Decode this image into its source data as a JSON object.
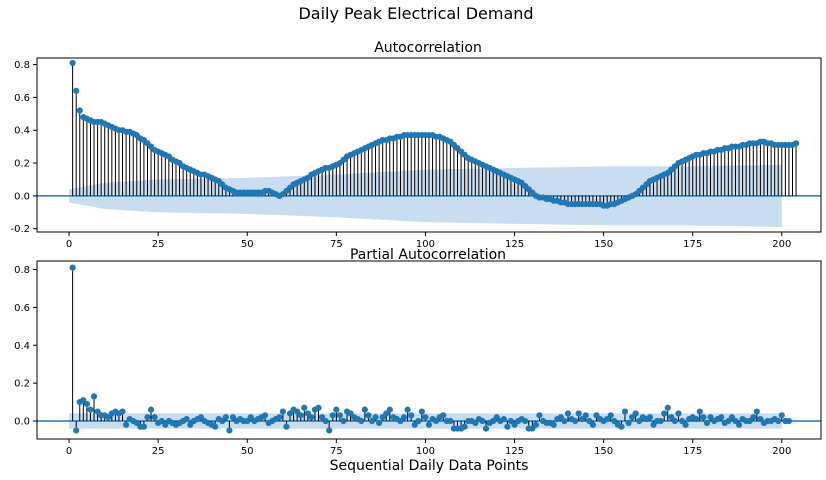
{
  "figure": {
    "suptitle": "Daily Peak Electrical Demand",
    "xlabel": "Sequential Daily Data Points"
  },
  "colors": {
    "marker": "#1f77b4",
    "stem": "#000000",
    "baseline": "#1f77b4",
    "confidence_band": "#c6dbef"
  },
  "chart_data": [
    {
      "type": "stem",
      "title": "Autocorrelation",
      "xlabel": "",
      "ylabel": "",
      "xlim": [
        -9,
        211
      ],
      "ylim": [
        -0.22,
        0.84
      ],
      "xticks": [
        0,
        25,
        50,
        75,
        100,
        125,
        150,
        175,
        200
      ],
      "yticks": [
        -0.2,
        0.0,
        0.2,
        0.4,
        0.6,
        0.8
      ],
      "ytick_labels": [
        "-0.2",
        "0.0",
        "0.2",
        "0.4",
        "0.6",
        "0.8"
      ],
      "lags": [
        1,
        200
      ],
      "values": [
        0.81,
        0.64,
        0.52,
        0.48,
        0.47,
        0.46,
        0.45,
        0.45,
        0.45,
        0.44,
        0.43,
        0.42,
        0.41,
        0.4,
        0.4,
        0.39,
        0.39,
        0.38,
        0.37,
        0.35,
        0.34,
        0.32,
        0.3,
        0.28,
        0.27,
        0.26,
        0.25,
        0.24,
        0.22,
        0.21,
        0.2,
        0.18,
        0.17,
        0.16,
        0.15,
        0.14,
        0.13,
        0.13,
        0.12,
        0.11,
        0.1,
        0.09,
        0.07,
        0.05,
        0.04,
        0.03,
        0.02,
        0.02,
        0.02,
        0.02,
        0.02,
        0.02,
        0.02,
        0.02,
        0.03,
        0.03,
        0.02,
        0.01,
        0.0,
        0.01,
        0.03,
        0.05,
        0.07,
        0.08,
        0.09,
        0.1,
        0.11,
        0.13,
        0.14,
        0.15,
        0.16,
        0.17,
        0.17,
        0.18,
        0.19,
        0.2,
        0.22,
        0.24,
        0.25,
        0.26,
        0.27,
        0.28,
        0.29,
        0.3,
        0.31,
        0.32,
        0.33,
        0.34,
        0.34,
        0.35,
        0.35,
        0.36,
        0.36,
        0.37,
        0.37,
        0.37,
        0.37,
        0.37,
        0.37,
        0.37,
        0.37,
        0.37,
        0.36,
        0.36,
        0.35,
        0.34,
        0.33,
        0.31,
        0.29,
        0.27,
        0.25,
        0.23,
        0.22,
        0.21,
        0.2,
        0.19,
        0.18,
        0.17,
        0.16,
        0.15,
        0.14,
        0.13,
        0.12,
        0.11,
        0.1,
        0.09,
        0.08,
        0.06,
        0.04,
        0.02,
        0.0,
        -0.01,
        -0.01,
        -0.02,
        -0.02,
        -0.03,
        -0.03,
        -0.04,
        -0.04,
        -0.05,
        -0.05,
        -0.05,
        -0.05,
        -0.05,
        -0.05,
        -0.05,
        -0.05,
        -0.05,
        -0.05,
        -0.06,
        -0.06,
        -0.05,
        -0.05,
        -0.04,
        -0.03,
        -0.02,
        -0.01,
        0.0,
        0.01,
        0.03,
        0.05,
        0.07,
        0.09,
        0.1,
        0.11,
        0.12,
        0.13,
        0.14,
        0.16,
        0.18,
        0.2,
        0.21,
        0.22,
        0.23,
        0.24,
        0.25,
        0.25,
        0.26,
        0.26,
        0.27,
        0.27,
        0.28,
        0.28,
        0.29,
        0.29,
        0.3,
        0.3,
        0.3,
        0.31,
        0.31,
        0.32,
        0.32,
        0.32,
        0.33,
        0.33,
        0.32,
        0.32,
        0.31,
        0.31,
        0.31,
        0.31,
        0.31,
        0.31,
        0.32
      ],
      "confidence_upper_approx": "0.04 at lag 0 rising to ~0.17 at lag 200",
      "confidence_band": {
        "lags": [
          0,
          10,
          25,
          50,
          75,
          100,
          125,
          150,
          175,
          200
        ],
        "half_width": [
          0.04,
          0.08,
          0.1,
          0.11,
          0.13,
          0.16,
          0.17,
          0.18,
          0.18,
          0.19
        ]
      }
    },
    {
      "type": "stem",
      "title": "Partial Autocorrelation",
      "xlabel": "Sequential Daily Data Points",
      "ylabel": "",
      "xlim": [
        -9,
        211
      ],
      "ylim": [
        -0.095,
        0.845
      ],
      "xticks": [
        0,
        25,
        50,
        75,
        100,
        125,
        150,
        175,
        200
      ],
      "yticks": [
        0.0,
        0.2,
        0.4,
        0.6,
        0.8
      ],
      "ytick_labels": [
        "0.0",
        "0.2",
        "0.4",
        "0.6",
        "0.8"
      ],
      "lags": [
        1,
        200
      ],
      "values": [
        0.81,
        -0.05,
        0.1,
        0.11,
        0.09,
        0.06,
        0.13,
        0.05,
        0.03,
        0.03,
        0.02,
        0.04,
        0.05,
        0.04,
        0.05,
        -0.02,
        0.01,
        0.0,
        -0.01,
        -0.03,
        -0.03,
        0.02,
        0.06,
        0.02,
        -0.01,
        0.0,
        -0.02,
        0.0,
        -0.01,
        -0.02,
        -0.01,
        0.0,
        0.01,
        -0.02,
        0.0,
        0.01,
        0.02,
        0.0,
        -0.01,
        -0.02,
        -0.03,
        0.01,
        0.0,
        0.02,
        -0.05,
        0.02,
        0.0,
        0.01,
        0.0,
        0.0,
        0.02,
        0.0,
        0.01,
        0.02,
        0.03,
        -0.01,
        0.0,
        0.01,
        0.02,
        0.05,
        -0.03,
        0.04,
        0.06,
        0.05,
        0.03,
        0.07,
        0.04,
        0.02,
        0.06,
        0.07,
        0.02,
        0.0,
        -0.05,
        0.03,
        0.06,
        0.03,
        0.0,
        0.05,
        0.04,
        0.02,
        0.01,
        0.0,
        0.06,
        0.03,
        0.0,
        0.02,
        -0.01,
        0.02,
        0.04,
        0.06,
        0.02,
        0.01,
        0.0,
        0.02,
        0.06,
        0.03,
        -0.02,
        0.0,
        0.05,
        0.02,
        -0.02,
        0.01,
        0.0,
        0.02,
        0.03,
        0.0,
        0.0,
        -0.04,
        -0.04,
        -0.04,
        -0.03,
        0.0,
        0.0,
        -0.01,
        0.01,
        0.0,
        -0.04,
        -0.01,
        0.0,
        0.02,
        0.0,
        0.01,
        -0.03,
        0.0,
        -0.02,
        0.0,
        0.01,
        0.0,
        -0.04,
        -0.04,
        -0.02,
        0.03,
        0.0,
        -0.01,
        -0.01,
        -0.02,
        0.01,
        0.02,
        0.0,
        0.04,
        0.01,
        0.0,
        0.04,
        0.01,
        0.03,
        0.0,
        -0.02,
        0.03,
        0.01,
        0.0,
        0.01,
        0.03,
        0.0,
        -0.02,
        -0.03,
        0.05,
        -0.01,
        0.02,
        0.04,
        0.0,
        0.02,
        0.01,
        0.02,
        -0.02,
        0.0,
        0.0,
        0.04,
        0.07,
        0.02,
        0.0,
        0.04,
        0.0,
        -0.02,
        0.01,
        0.02,
        0.01,
        0.05,
        0.02,
        -0.01,
        0.02,
        0.0,
        0.01,
        0.02,
        -0.01,
        0.0,
        0.02,
        0.0,
        -0.02,
        0.01,
        0.0,
        0.0,
        0.02,
        0.05,
        0.01,
        -0.01,
        0.0,
        0.0,
        0.01,
        0.0,
        0.03,
        0.0,
        0.0
      ],
      "confidence_band": {
        "lags": [
          0,
          200
        ],
        "half_width": [
          0.04,
          0.04
        ]
      }
    }
  ]
}
